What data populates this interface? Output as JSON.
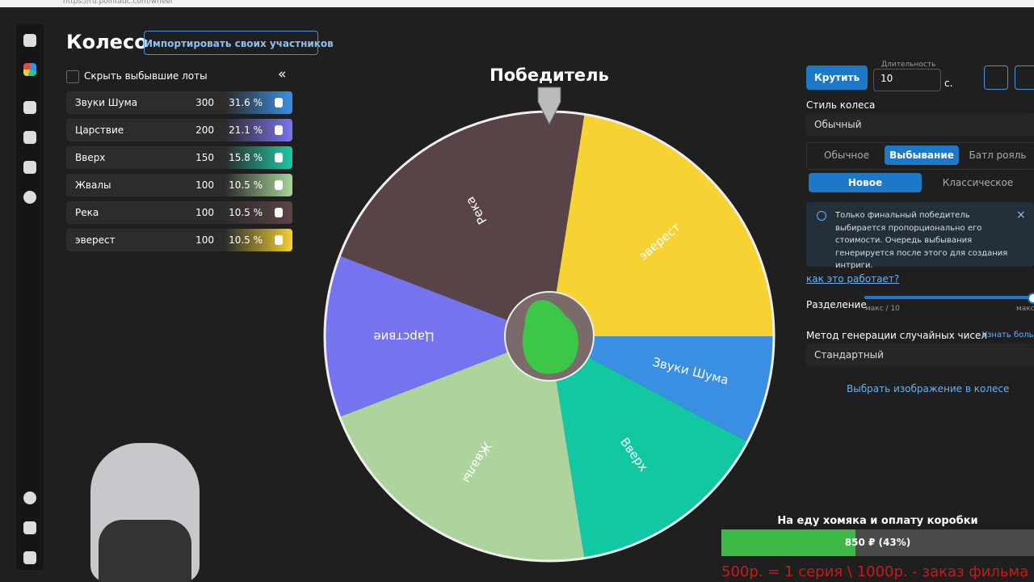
{
  "browser": {
    "url": "https://ru.pointauc.com/wheel"
  },
  "header": {
    "title": "Колесо",
    "import_button": "Импортировать своих участников"
  },
  "lots_panel": {
    "hide_label": "Скрыть выбывшие лоты",
    "collapse": "«",
    "lots": [
      {
        "name": "Звуки Шума",
        "amount": "300",
        "percent": "31.6 %",
        "color": "#3b8fe0"
      },
      {
        "name": "Царствие",
        "amount": "200",
        "percent": "21.1 %",
        "color": "#7b73f0"
      },
      {
        "name": "Вверх",
        "amount": "150",
        "percent": "15.8 %",
        "color": "#1dc9a4"
      },
      {
        "name": "Жвалы",
        "amount": "100",
        "percent": "10.5 %",
        "color": "#a8d49a"
      },
      {
        "name": "Река",
        "amount": "100",
        "percent": "10.5 %",
        "color": "#5a4446"
      },
      {
        "name": "эверест",
        "amount": "100",
        "percent": "10.5 %",
        "color": "#f5d02c"
      }
    ]
  },
  "wheel": {
    "title": "Победитель",
    "segments": [
      {
        "label": "Река",
        "color": "#584446"
      },
      {
        "label": "эверест",
        "color": "#f6d232"
      },
      {
        "label": "Звуки Шума",
        "color": "#3a8fe2"
      },
      {
        "label": "Вверх",
        "color": "#12c8a2"
      },
      {
        "label": "Жвалы",
        "color": "#acd49c"
      },
      {
        "label": "Царствие",
        "color": "#7673ef"
      }
    ]
  },
  "controls": {
    "spin": "Крутить",
    "duration_label": "Длительность",
    "duration_value": "10",
    "seconds": "с.",
    "style_label": "Стиль колеса",
    "style_value": "Обычный",
    "modes": [
      "Обычное",
      "Выбывание",
      "Батл рояль"
    ],
    "submodes": [
      "Новое",
      "Классическое"
    ],
    "info": "Только финальный победитель выбирается пропорционально его стоимости. Очередь выбывания генерируется после этого для создания интриги.",
    "how_link": "как это работает?",
    "split_label": "Разделение",
    "split_min": "макс / 10",
    "split_max": "макс",
    "rng_label": "Метод генерации случайных чисел",
    "rng_more": "Узнать больше",
    "rng_value": "Стандартный",
    "image_select": "Выбрать изображение в колесе"
  },
  "goal": {
    "title": "На еду хомяка и оплату коробки",
    "progress": "850 ₽ (43%)",
    "ticker": "500р. = 1 серия \\ 1000р. - заказ фильма"
  }
}
